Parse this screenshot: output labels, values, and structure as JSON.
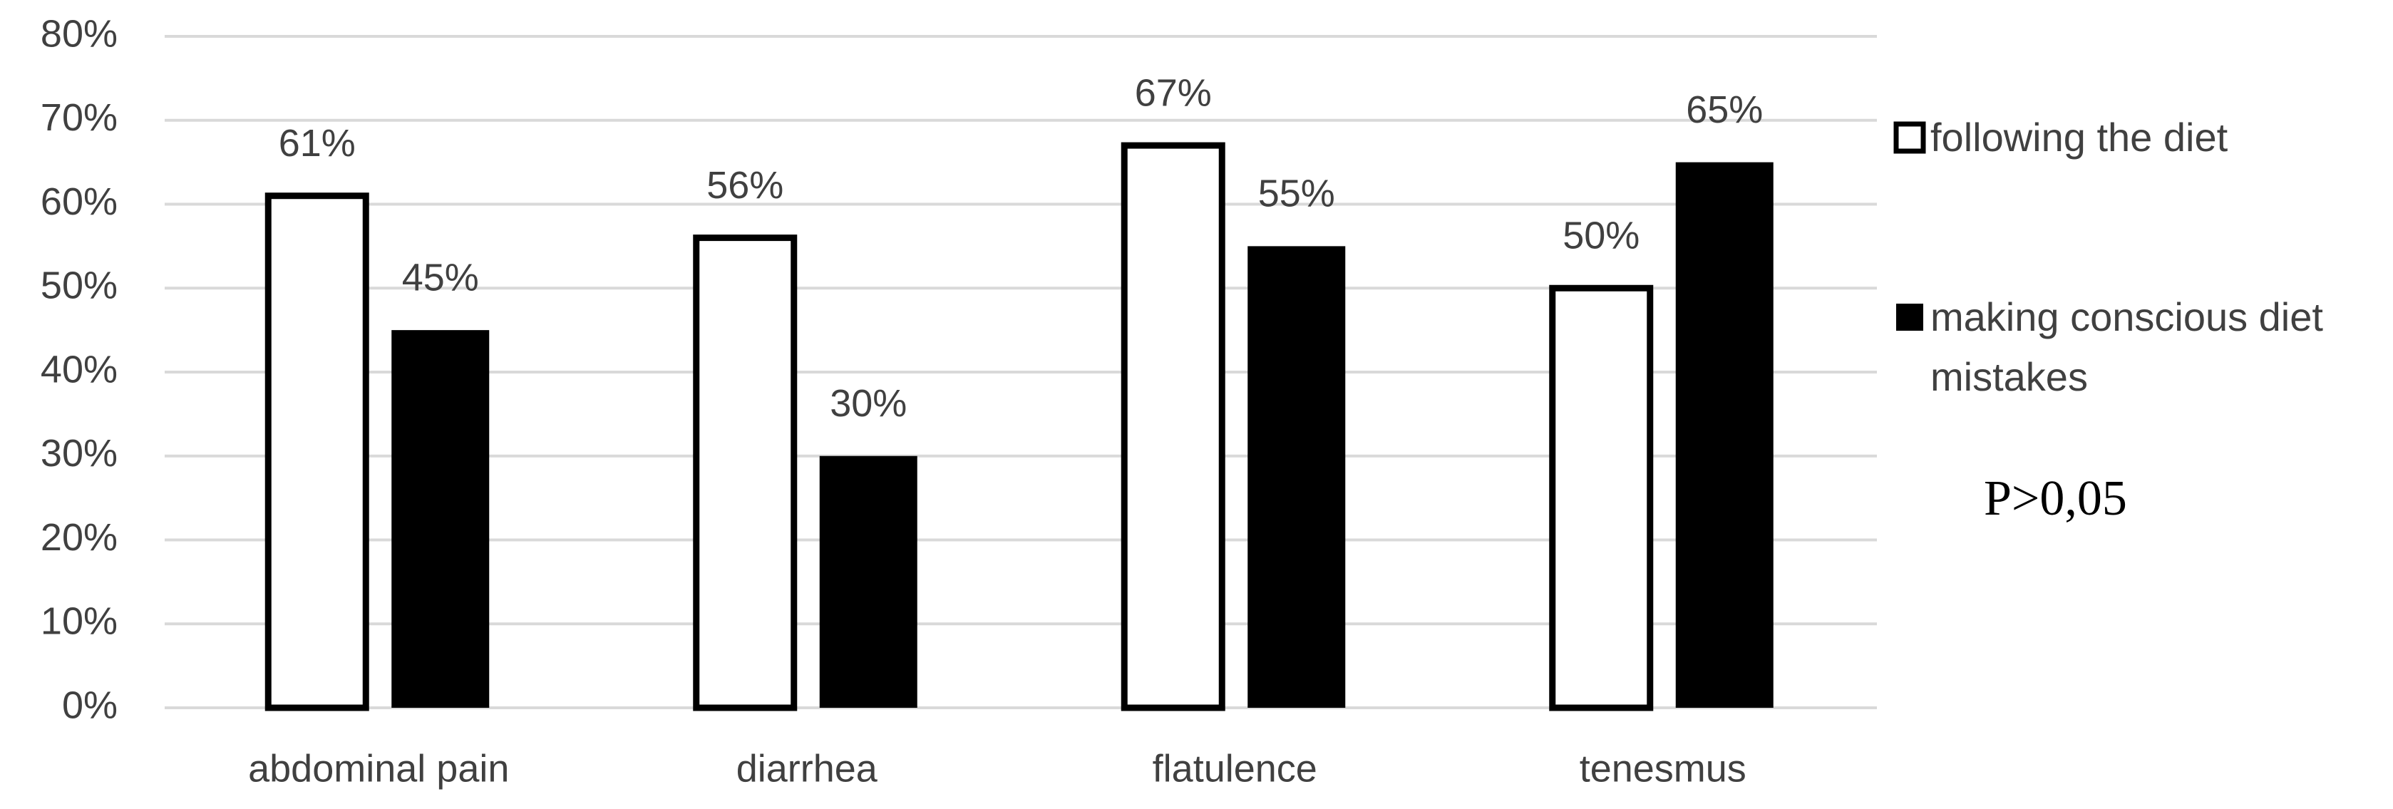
{
  "chart_data": {
    "type": "bar",
    "categories": [
      "abdominal pain",
      "diarrhea",
      "flatulence",
      "tenesmus"
    ],
    "series": [
      {
        "name": "following the diet",
        "color": "#ffffff",
        "values": [
          61,
          56,
          67,
          50
        ],
        "value_labels": [
          "61%",
          "56%",
          "67%",
          "50%"
        ]
      },
      {
        "name": "making conscious diet mistakes",
        "color": "#000000",
        "values": [
          45,
          30,
          55,
          65
        ],
        "value_labels": [
          "45%",
          "30%",
          "55%",
          "65%"
        ]
      }
    ],
    "ylim": [
      0,
      80
    ],
    "yticks": [
      {
        "value": 0,
        "label": "0%"
      },
      {
        "value": 10,
        "label": "10%"
      },
      {
        "value": 20,
        "label": "20%"
      },
      {
        "value": 30,
        "label": "30%"
      },
      {
        "value": 40,
        "label": "40%"
      },
      {
        "value": 50,
        "label": "50%"
      },
      {
        "value": 60,
        "label": "60%"
      },
      {
        "value": 70,
        "label": "70%"
      },
      {
        "value": 80,
        "label": "80%"
      }
    ],
    "grid": true,
    "legend": "right",
    "annotation": "P>0,05"
  }
}
